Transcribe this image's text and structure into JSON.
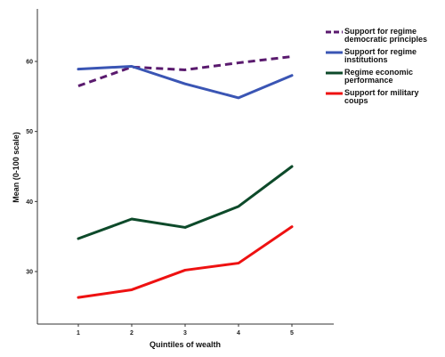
{
  "chart_data": {
    "type": "line",
    "title": "",
    "xlabel": "Quintiles of wealth",
    "ylabel": "Mean (0-100 scale)",
    "categories": [
      "1",
      "2",
      "3",
      "4",
      "5"
    ],
    "yticks": [
      "30",
      "40",
      "50",
      "60"
    ],
    "ylim": [
      22.5,
      67.5
    ],
    "grid": false,
    "legend_position": "top-right",
    "series": [
      {
        "name": "Support for regime democratic principles",
        "legend_lines": [
          "Support for regime",
          "democratic principles"
        ],
        "values": [
          56.5,
          59.2,
          58.8,
          59.8,
          60.7
        ],
        "color": "#5a1a6e",
        "dash": true
      },
      {
        "name": "Support for regime institutions",
        "legend_lines": [
          "Support for regime",
          "institutions"
        ],
        "values": [
          58.9,
          59.3,
          56.8,
          54.8,
          58.0
        ],
        "color": "#3a55b4",
        "dash": false
      },
      {
        "name": "Regime economic performance",
        "legend_lines": [
          "Regime economic",
          "performance"
        ],
        "values": [
          34.7,
          37.5,
          36.3,
          39.3,
          45.0
        ],
        "color": "#0d4a2a",
        "dash": false
      },
      {
        "name": "Support for military coups",
        "legend_lines": [
          "Support for military",
          "coups"
        ],
        "values": [
          26.3,
          27.4,
          30.2,
          31.2,
          36.4
        ],
        "color": "#ee1111",
        "dash": false
      }
    ]
  }
}
